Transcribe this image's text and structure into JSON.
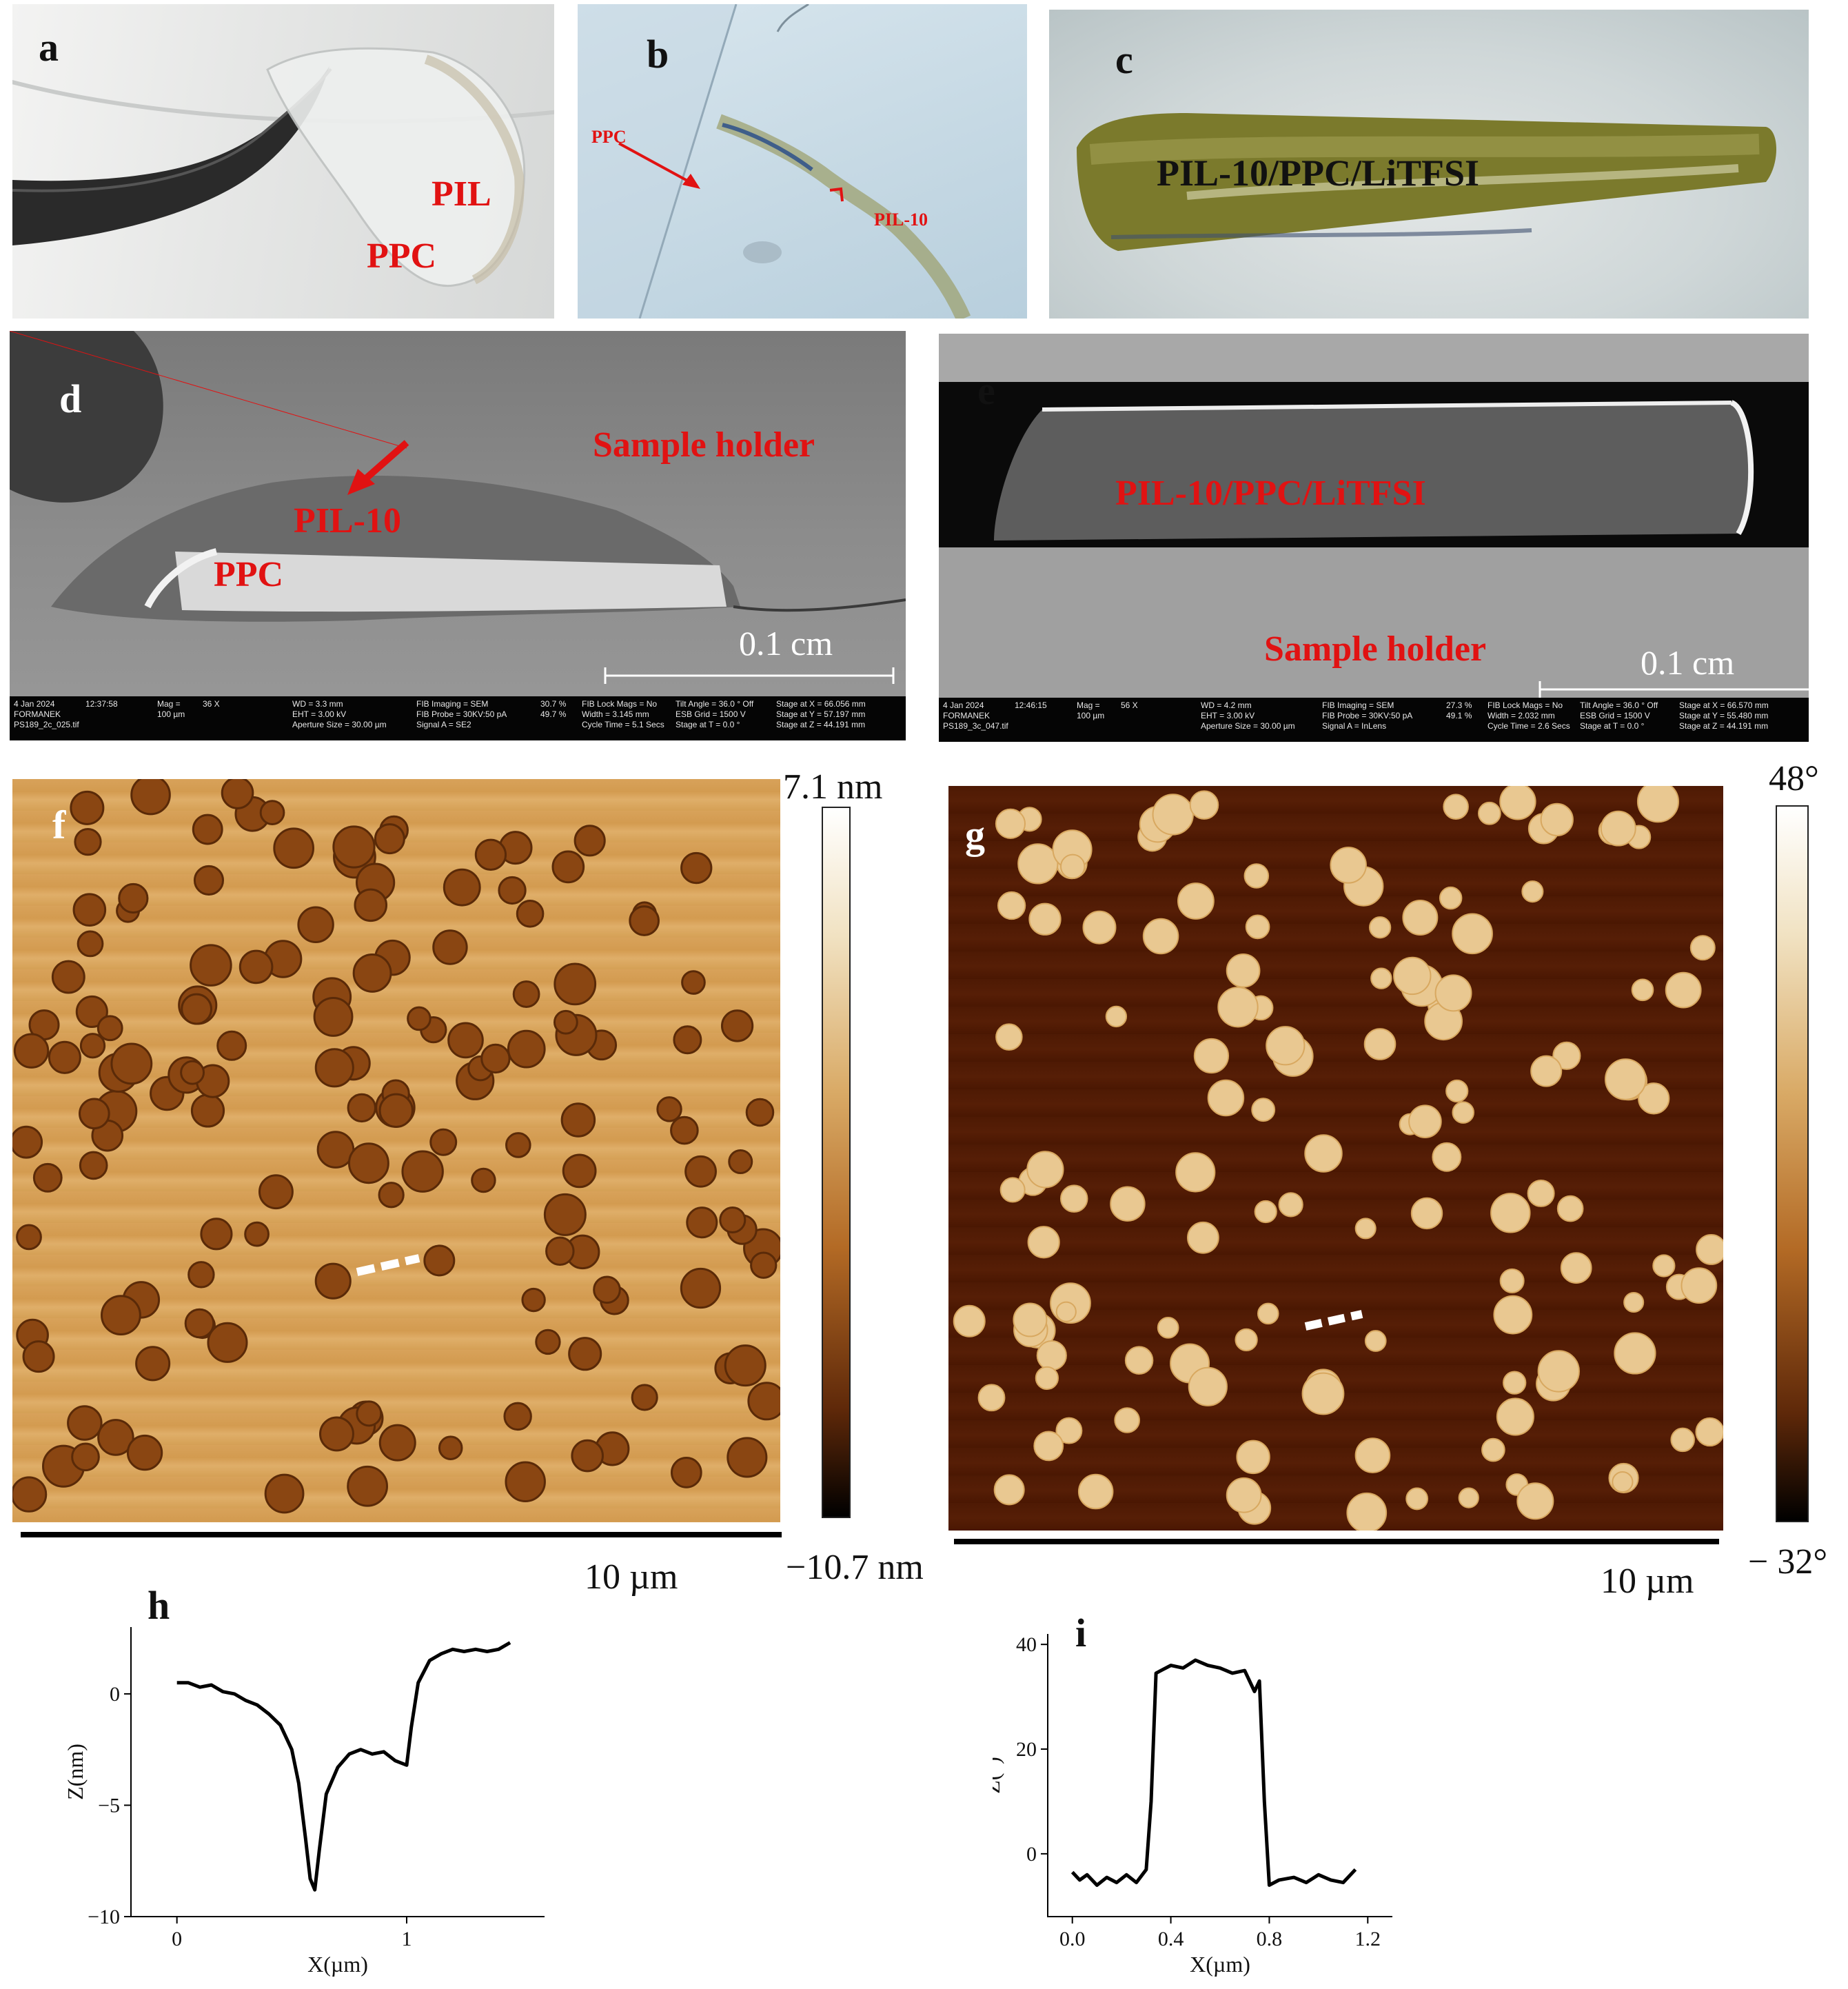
{
  "panels": {
    "a": {
      "label": "a",
      "pil": "PIL",
      "ppc": "PPC"
    },
    "b": {
      "label": "b",
      "ppc": "PPC",
      "pil10": "PIL-10"
    },
    "c": {
      "label": "c",
      "composite": "PIL-10/PPC/LiTFSI"
    },
    "d": {
      "label": "d",
      "holder": "Sample holder",
      "pil10": "PIL-10",
      "ppc": "PPC",
      "scale": "0.1 cm",
      "info": {
        "date": "4 Jan 2024",
        "time": "12:37:58",
        "user": "FORMANEK",
        "file": "PS189_2c_025.tif",
        "mag": "Mag =",
        "mag_val": "36 X",
        "width_bar": "100 µm",
        "wd": "WD = 3.3 mm",
        "eht": "EHT = 3.00 kV",
        "aperture": "Aperture Size = 30.00 µm",
        "fib_imaging": "FIB Imaging = SEM",
        "fib_probe": "FIB Probe = 30KV:50 pA",
        "signal": "Signal A = SE2",
        "pct1": "30.7 %",
        "pct2": "49.7 %",
        "width": "Width = 3.145 mm",
        "cycle": "Cycle Time = 5.1 Secs",
        "lock": "FIB Lock Mags = No",
        "esb": "ESB Grid = 1500 V",
        "tilt": "Tilt Angle = 36.0 ° Off",
        "stage_t": "Stage at T = 0.0 °",
        "stage_x": "Stage at X = 66.056 mm",
        "stage_y": "Stage at Y = 57.197 mm",
        "stage_z": "Stage at Z = 44.191 mm"
      }
    },
    "e": {
      "label": "e",
      "composite": "PIL-10/PPC/LiTFSI",
      "holder": "Sample holder",
      "scale": "0.1 cm",
      "info": {
        "date": "4 Jan 2024",
        "time": "12:46:15",
        "user": "FORMANEK",
        "file": "PS189_3c_047.tif",
        "mag": "Mag =",
        "mag_val": "56 X",
        "width_bar": "100 µm",
        "wd": "WD = 4.2 mm",
        "eht": "EHT = 3.00 kV",
        "aperture": "Aperture Size = 30.00 µm",
        "fib_imaging": "FIB Imaging = SEM",
        "fib_probe": "FIB Probe = 30KV:50 pA",
        "signal": "Signal A = InLens",
        "pct1": "27.3 %",
        "pct2": "49.1 %",
        "width": "Width = 2.032 mm",
        "cycle": "Cycle Time = 2.6 Secs",
        "lock": "FIB Lock Mags = No",
        "esb": "ESB Grid = 1500 V",
        "tilt": "Tilt Angle = 36.0 ° Off",
        "stage_t": "Stage at T = 0.0 °",
        "stage_x": "Stage at X = 66.570 mm",
        "stage_y": "Stage at Y = 55.480 mm",
        "stage_z": "Stage at Z = 44.191 mm"
      }
    },
    "f": {
      "label": "f",
      "cbar_max": "7.1 nm",
      "cbar_min": "−10.7 nm",
      "scale": "10 µm"
    },
    "g": {
      "label": "g",
      "cbar_max": "48°",
      "cbar_min": "− 32°",
      "scale": "10 µm"
    },
    "h": {
      "label": "h"
    },
    "i": {
      "label": "i"
    }
  },
  "chart_data": [
    {
      "type": "line",
      "panel": "h",
      "xlabel": "X(µm)",
      "ylabel": "Z(nm)",
      "xlim": [
        -0.2,
        1.6
      ],
      "ylim": [
        -10,
        3
      ],
      "xticks": [
        0,
        1
      ],
      "yticks": [
        -10,
        -5,
        0
      ],
      "series": [
        {
          "x": [
            0.0,
            0.05,
            0.1,
            0.15,
            0.2,
            0.25,
            0.3,
            0.35,
            0.4,
            0.45,
            0.5,
            0.53,
            0.56,
            0.58,
            0.6,
            0.62,
            0.65,
            0.7,
            0.75,
            0.8,
            0.85,
            0.9,
            0.95,
            1.0,
            1.02,
            1.05,
            1.1,
            1.15,
            1.2,
            1.25,
            1.3,
            1.35,
            1.4,
            1.45
          ],
          "y": [
            0.5,
            0.5,
            0.3,
            0.4,
            0.1,
            0.0,
            -0.3,
            -0.5,
            -0.9,
            -1.4,
            -2.5,
            -4.0,
            -6.5,
            -8.3,
            -8.8,
            -7.0,
            -4.5,
            -3.3,
            -2.7,
            -2.5,
            -2.7,
            -2.6,
            -3.0,
            -3.2,
            -1.5,
            0.5,
            1.5,
            1.8,
            2.0,
            1.9,
            2.0,
            1.9,
            2.0,
            2.3
          ]
        }
      ]
    },
    {
      "type": "line",
      "panel": "i",
      "xlabel": "X(µm)",
      "ylabel": "Z(°)",
      "xlim": [
        -0.1,
        1.3
      ],
      "ylim": [
        -12,
        42
      ],
      "xticks": [
        0.0,
        0.4,
        0.8,
        1.2
      ],
      "xtick_labels": [
        "0.0",
        "0.4",
        "0.8",
        "1.2"
      ],
      "yticks": [
        0,
        20,
        40
      ],
      "series": [
        {
          "x": [
            0.0,
            0.03,
            0.06,
            0.1,
            0.14,
            0.18,
            0.22,
            0.26,
            0.3,
            0.32,
            0.34,
            0.36,
            0.4,
            0.45,
            0.5,
            0.55,
            0.6,
            0.65,
            0.7,
            0.74,
            0.76,
            0.78,
            0.8,
            0.84,
            0.9,
            0.95,
            1.0,
            1.05,
            1.1,
            1.15
          ],
          "y": [
            -3.5,
            -5.0,
            -4.0,
            -6.0,
            -4.5,
            -5.5,
            -4.0,
            -5.5,
            -3.0,
            10.0,
            34.5,
            35.0,
            36.0,
            35.5,
            37.0,
            36.0,
            35.5,
            34.5,
            35.0,
            31.0,
            33.0,
            10.0,
            -6.0,
            -5.0,
            -4.5,
            -5.5,
            -4.0,
            -5.0,
            -5.5,
            -3.0
          ]
        }
      ]
    }
  ]
}
